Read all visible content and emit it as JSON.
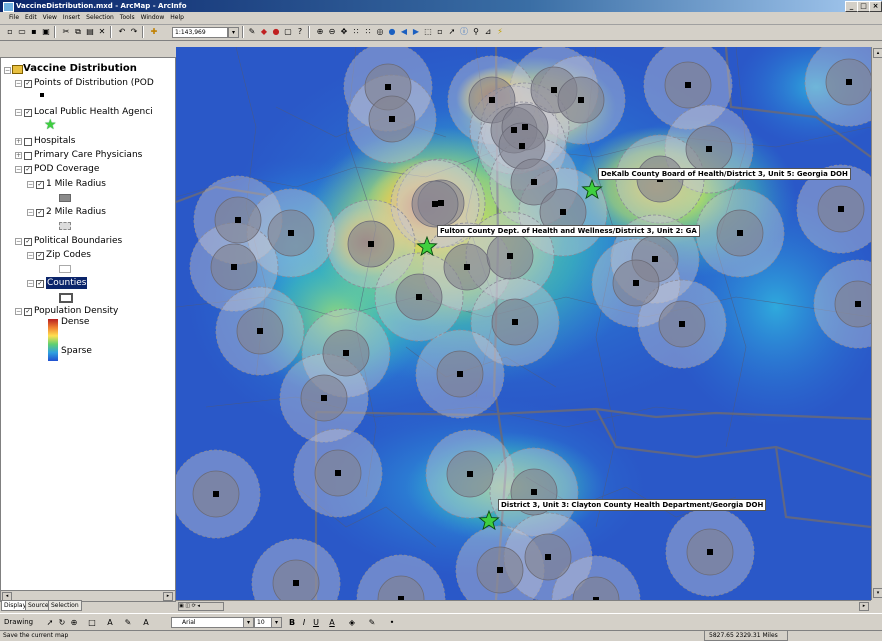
{
  "window": {
    "title": "VaccineDistribution.mxd - ArcMap - ArcInfo",
    "controls": [
      "_",
      "□",
      "×"
    ]
  },
  "menu": [
    "File",
    "Edit",
    "View",
    "Insert",
    "Selection",
    "Tools",
    "Window",
    "Help"
  ],
  "toolbar": {
    "scale_value": "1:143,969",
    "tools": [
      "new-icon",
      "open-icon",
      "save-icon",
      "print-icon",
      "cut-icon",
      "copy-icon",
      "paste-icon",
      "delete-icon",
      "undo-icon",
      "redo-icon",
      "add-data-icon"
    ],
    "tools2": [
      "editor-icon",
      "arctoolbox-icon",
      "arccatalog-icon",
      "python-icon",
      "whats-this-icon"
    ],
    "tools3": [
      "zoom-in-icon",
      "zoom-out-icon",
      "fixed-zoom-in-icon",
      "fixed-zoom-out-icon",
      "pan-icon",
      "full-extent-icon",
      "back-icon",
      "forward-icon",
      "select-features-icon",
      "clear-selection-icon",
      "select-elements-icon",
      "identify-icon",
      "find-icon",
      "go-to-xy-icon",
      "measure-icon",
      "hyperlink-icon"
    ]
  },
  "toc": {
    "dataframe": "Vaccine Distribution",
    "layers": [
      {
        "label": "Points of Distribution (POD",
        "checked": true,
        "expanded": true,
        "indent": 1
      },
      {
        "label": "Local Public Health Agenci",
        "checked": true,
        "expanded": true,
        "indent": 1
      },
      {
        "label": "Hospitals",
        "checked": false,
        "expanded": false,
        "indent": 1
      },
      {
        "label": "Primary Care Physicians",
        "checked": false,
        "expanded": false,
        "indent": 1
      },
      {
        "label": "POD Coverage",
        "checked": true,
        "expanded": true,
        "indent": 1
      },
      {
        "label": "1 Mile Radius",
        "checked": true,
        "expanded": true,
        "indent": 2
      },
      {
        "label": "2 Mile Radius",
        "checked": true,
        "expanded": true,
        "indent": 2
      },
      {
        "label": "Political Boundaries",
        "checked": true,
        "expanded": true,
        "indent": 1
      },
      {
        "label": "Zip Codes",
        "checked": true,
        "expanded": true,
        "indent": 2
      },
      {
        "label": "Counties",
        "checked": true,
        "expanded": true,
        "indent": 2,
        "selected": true
      },
      {
        "label": "Population Density",
        "checked": true,
        "expanded": true,
        "indent": 1
      }
    ],
    "density_legend": {
      "high": "Dense",
      "low": "Sparse"
    },
    "tabs": [
      "Display",
      "Source",
      "Selection"
    ]
  },
  "map": {
    "callouts": [
      "DeKalb County Board of Health/District 3, Unit 5: Georgia DOH",
      "Fulton County Dept. of Health and Wellness/District 3, Unit 2: GA",
      "District 3, Unit 3: Clayton County Health Department/Georgia DOH"
    ],
    "colors": {
      "sparse": "#2a58c8",
      "dense": "#e06030",
      "star": "#3fcf3f"
    }
  },
  "drawing": {
    "label": "Drawing",
    "font": "Arial",
    "size": "10",
    "styles": [
      "B",
      "I",
      "U"
    ]
  },
  "status": {
    "message": "Save the current map",
    "coordinates": "5827.65 2329.31 Miles"
  }
}
